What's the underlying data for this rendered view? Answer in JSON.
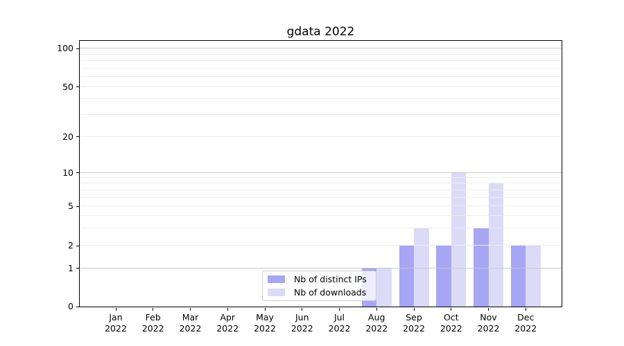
{
  "title": "gdata 2022",
  "colors": {
    "bar_distinct_ips": "#a6a6f4",
    "bar_downloads": "#dbdbf8",
    "grid_major": "#c9c9c9",
    "grid_minor": "#ededed",
    "spine": "#000000",
    "legend_border": "#cccccc",
    "legend_background": "rgba(255,255,255,0.8)"
  },
  "legend": {
    "items": [
      {
        "label": "Nb of distinct IPs",
        "color": "#a6a6f4"
      },
      {
        "label": "Nb of downloads",
        "color": "#dbdbf8"
      }
    ]
  },
  "axes": {
    "x": {
      "months": [
        "Jan",
        "Feb",
        "Mar",
        "Apr",
        "May",
        "Jun",
        "Jul",
        "Aug",
        "Sep",
        "Oct",
        "Nov",
        "Dec"
      ],
      "year": "2022"
    },
    "y": {
      "ticks": [
        0,
        1,
        2,
        5,
        10,
        20,
        50,
        100
      ],
      "tick_fracs": {
        "0": 0,
        "1": 0.1438,
        "2": 0.228,
        "5": 0.3765,
        "10": 0.5039,
        "20": 0.6381,
        "50": 0.8264,
        "100": 0.9707
      },
      "grid_major": [
        1,
        10,
        100
      ],
      "grid_minor": [
        2,
        3,
        4,
        5,
        6,
        7,
        8,
        9,
        20,
        30,
        40,
        50,
        60,
        70,
        80,
        90
      ]
    }
  },
  "chart_data": {
    "type": "bar",
    "title": "gdata 2022",
    "categories": [
      "Jan 2022",
      "Feb 2022",
      "Mar 2022",
      "Apr 2022",
      "May 2022",
      "Jun 2022",
      "Jul 2022",
      "Aug 2022",
      "Sep 2022",
      "Oct 2022",
      "Nov 2022",
      "Dec 2022"
    ],
    "series": [
      {
        "name": "Nb of distinct IPs",
        "color": "#a6a6f4",
        "values": [
          0,
          0,
          0,
          0,
          0,
          0,
          0,
          1,
          2,
          2,
          3,
          2
        ]
      },
      {
        "name": "Nb of downloads",
        "color": "#dbdbf8",
        "values": [
          0,
          0,
          0,
          0,
          0,
          0,
          0,
          1,
          3,
          10,
          8,
          2
        ]
      }
    ],
    "xlabel": "",
    "ylabel": "",
    "yscale": "log above 1, linear between 0 and 1",
    "yticks": [
      0,
      1,
      2,
      5,
      10,
      20,
      50,
      100
    ],
    "ylim": [
      0,
      110
    ],
    "grid": "horizontal only: major at 1/10/100, faint minor log lines",
    "legend_position": "lower center, semi-transparent, overlapping Aug bars"
  }
}
